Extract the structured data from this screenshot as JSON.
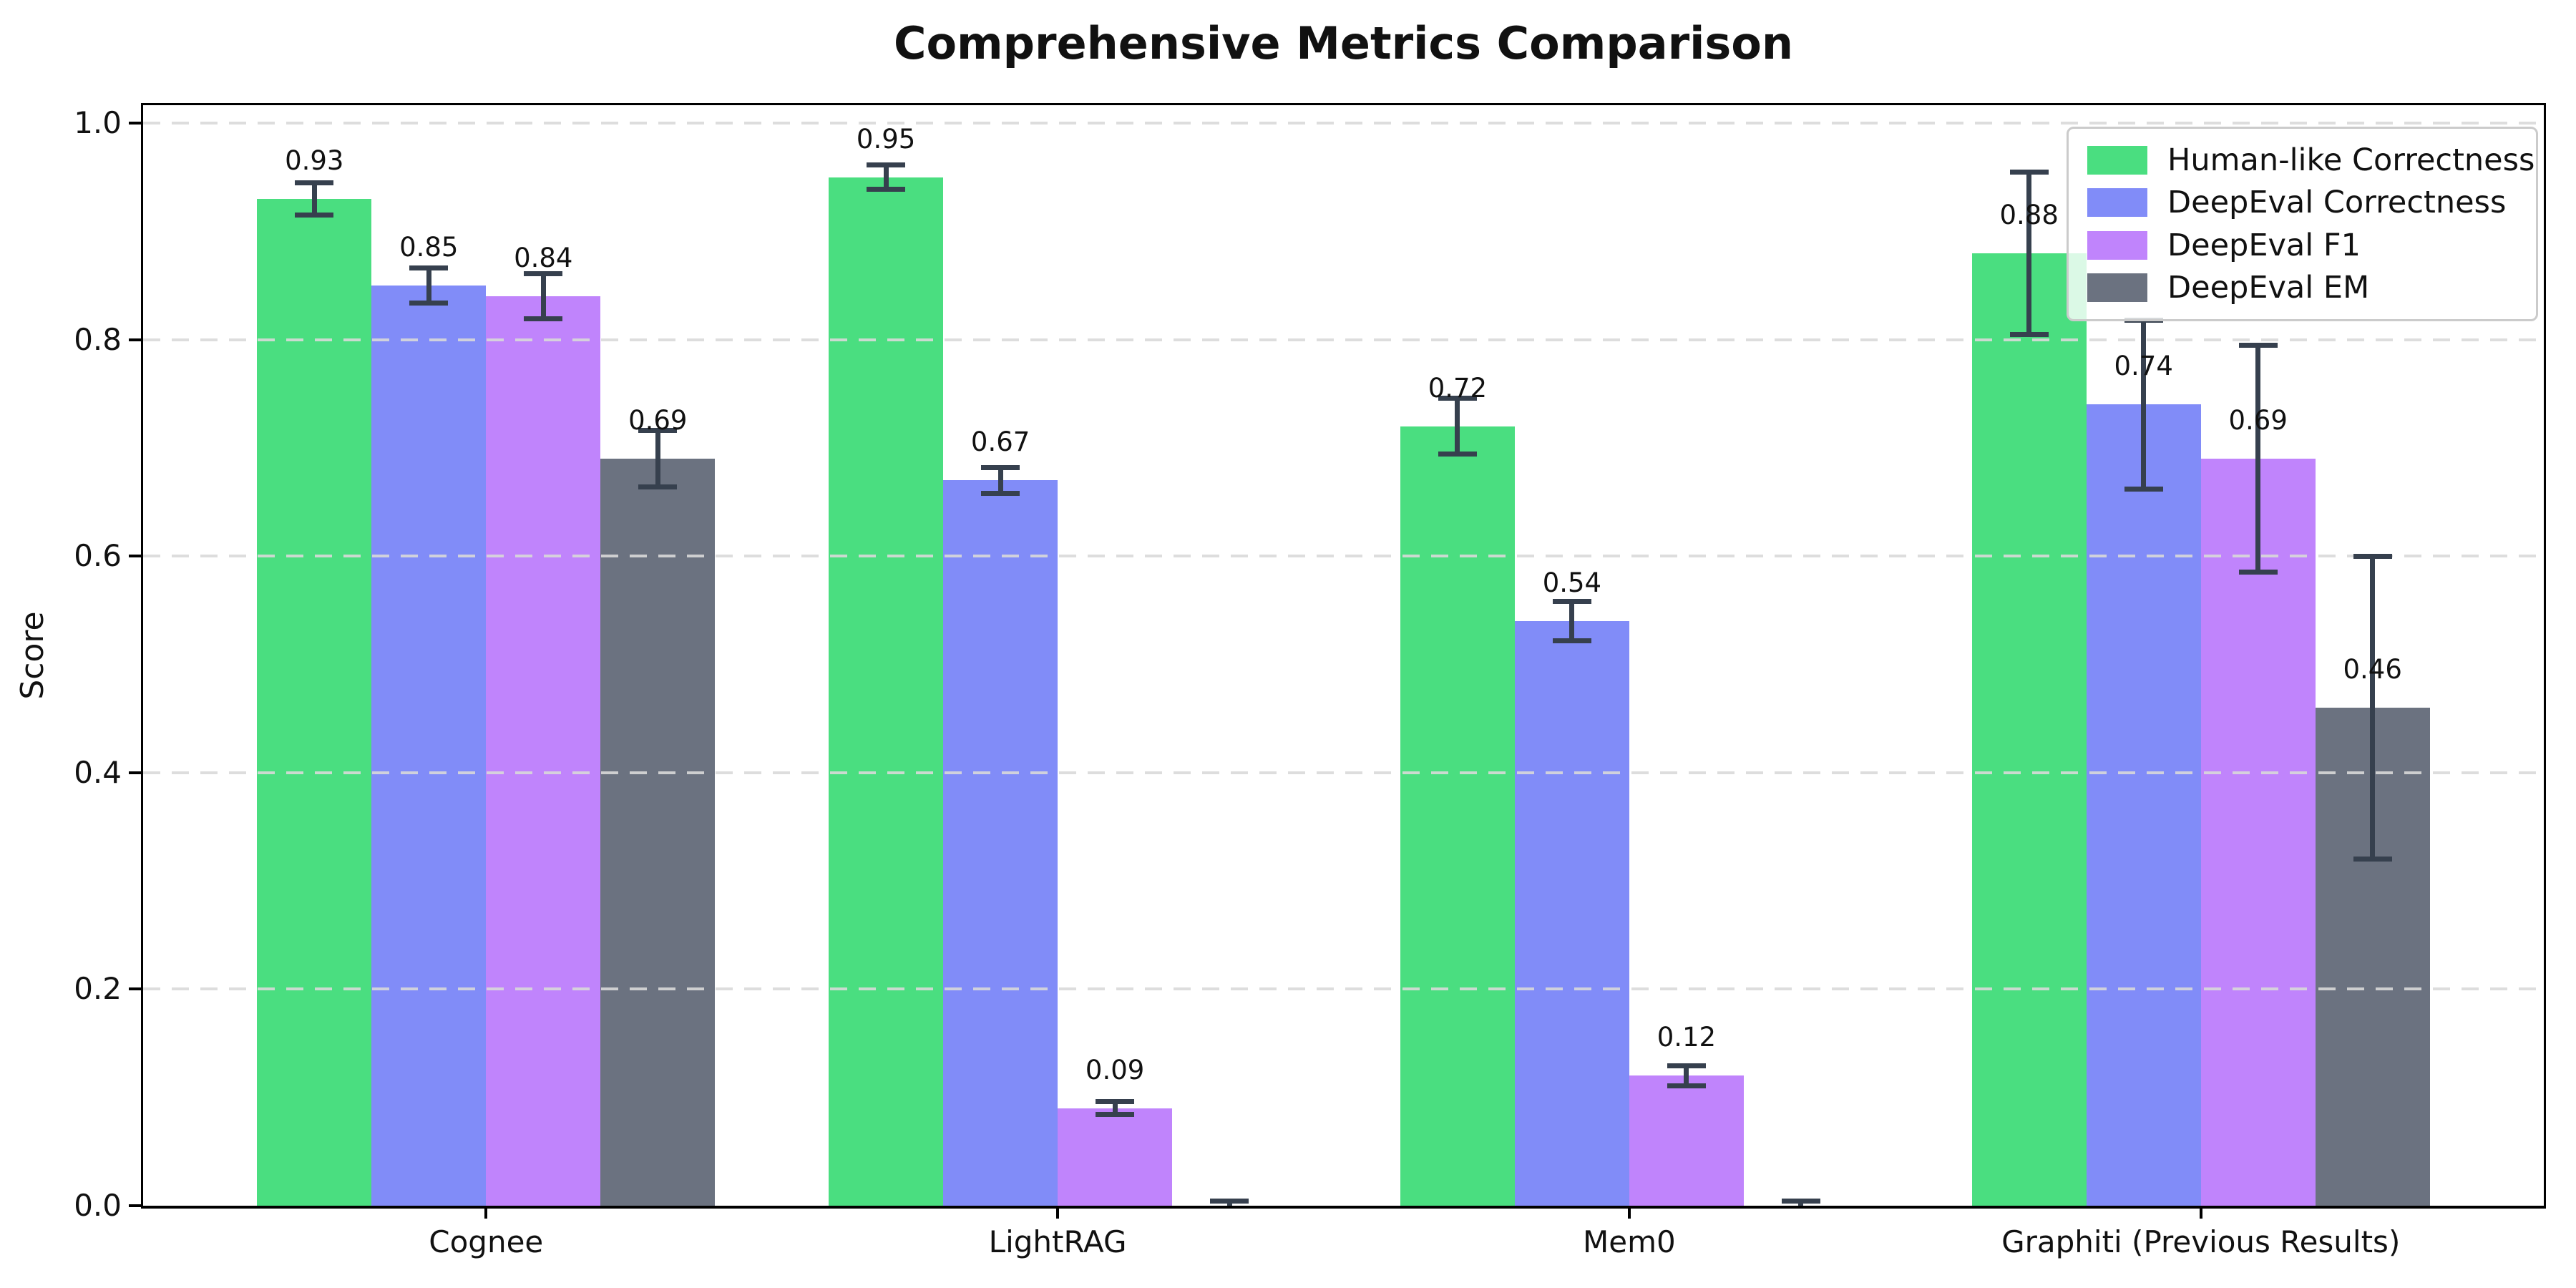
{
  "chart_data": {
    "type": "bar",
    "title": "Comprehensive Metrics Comparison",
    "ylabel": "Score",
    "xlabel": "",
    "categories": [
      "Cognee",
      "LightRAG",
      "Mem0",
      "Graphiti (Previous Results)"
    ],
    "series": [
      {
        "name": "Human-like Correctness",
        "color": "#4ade80",
        "values": [
          0.93,
          0.95,
          0.72,
          0.88
        ],
        "errors": [
          0.015,
          0.011,
          0.026,
          0.075
        ],
        "bar_labels": [
          "0.93",
          "0.95",
          "0.72",
          "0.88"
        ]
      },
      {
        "name": "DeepEval Correctness",
        "color": "#818cf8",
        "values": [
          0.85,
          0.67,
          0.54,
          0.74
        ],
        "errors": [
          0.016,
          0.012,
          0.018,
          0.078
        ],
        "bar_labels": [
          "0.85",
          "0.67",
          "0.54",
          "0.74"
        ]
      },
      {
        "name": "DeepEval F1",
        "color": "#c084fc",
        "values": [
          0.84,
          0.09,
          0.12,
          0.69
        ],
        "errors": [
          0.021,
          0.006,
          0.009,
          0.105
        ],
        "bar_labels": [
          "0.84",
          "0.09",
          "0.12",
          "0.69"
        ]
      },
      {
        "name": "DeepEval EM",
        "color": "#6b7280",
        "values": [
          0.69,
          0.0,
          0.0,
          0.46
        ],
        "errors": [
          0.026,
          0.004,
          0.004,
          0.14
        ],
        "bar_labels": [
          "0.69",
          "",
          "",
          "0.46"
        ]
      }
    ],
    "yticks": [
      "0.0",
      "0.2",
      "0.4",
      "0.6",
      "0.8",
      "1.0"
    ],
    "ylim": [
      0.0,
      1.02
    ],
    "grid": {
      "axis": "y",
      "style": "dashed",
      "color": "#d9d9d9",
      "drawn_over_bars": true
    },
    "legend": {
      "position": "upper right"
    },
    "error_bar_color": "#36404e",
    "background_color": "#ffffff"
  }
}
